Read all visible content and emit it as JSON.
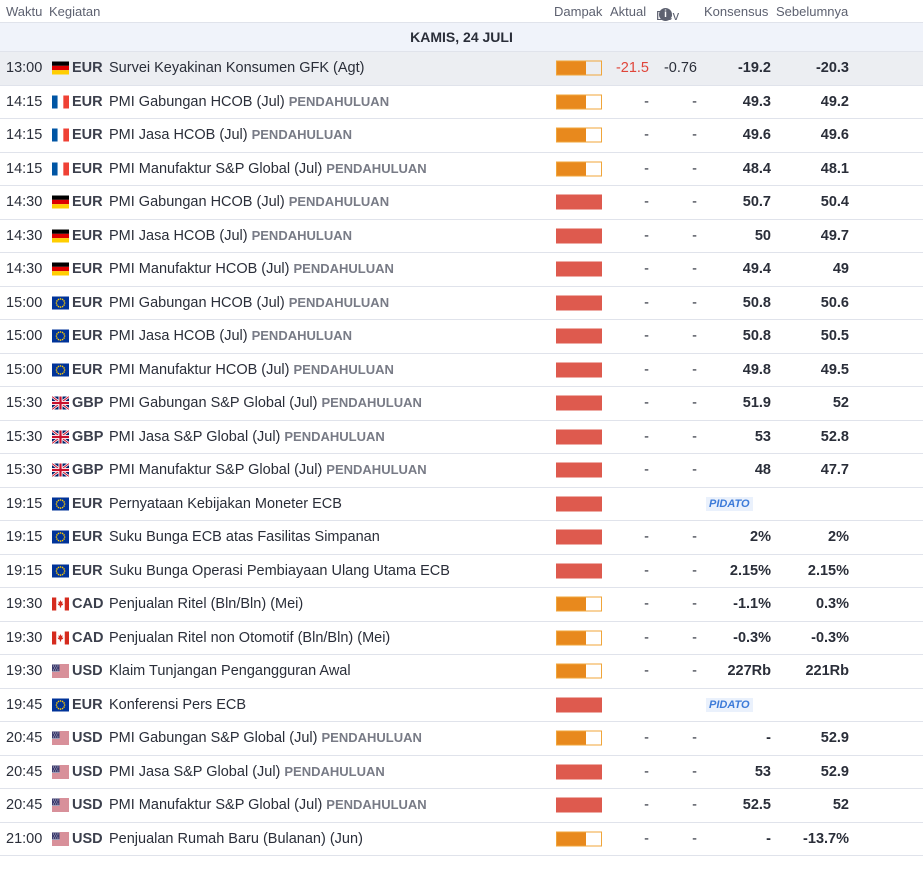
{
  "header": {
    "time": "Waktu",
    "event": "Kegiatan",
    "impact": "Dampak",
    "actual": "Aktual",
    "dev": "Dev",
    "consensus": "Konsensus",
    "previous": "Sebelumnya"
  },
  "day_label": "KAMIS, 24 JULI",
  "colors": {
    "impact_medium": "#e8891d",
    "impact_high": "#de5a4e",
    "negative": "#e0453a",
    "speech": "#3d7bd9"
  },
  "rows": [
    {
      "time": "13:00",
      "flag": "de",
      "currency": "EUR",
      "event": "Survei Keyakinan Konsumen GFK (Agt)",
      "prelim": "",
      "impact": "medium",
      "impact_level": 0.66,
      "actual": "-21.5",
      "dev": "-0.76",
      "consensus": "-19.2",
      "previous": "-20.3",
      "highlight": true,
      "actual_neg": true,
      "speech": ""
    },
    {
      "time": "14:15",
      "flag": "fr",
      "currency": "EUR",
      "event": "PMI Gabungan HCOB (Jul)",
      "prelim": "PENDAHULUAN",
      "impact": "medium",
      "impact_level": 0.66,
      "actual": "-",
      "dev": "-",
      "consensus": "49.3",
      "previous": "49.2"
    },
    {
      "time": "14:15",
      "flag": "fr",
      "currency": "EUR",
      "event": "PMI Jasa HCOB (Jul)",
      "prelim": "PENDAHULUAN",
      "impact": "medium",
      "impact_level": 0.66,
      "actual": "-",
      "dev": "-",
      "consensus": "49.6",
      "previous": "49.6"
    },
    {
      "time": "14:15",
      "flag": "fr",
      "currency": "EUR",
      "event": "PMI Manufaktur S&P Global (Jul)",
      "prelim": "PENDAHULUAN",
      "impact": "medium",
      "impact_level": 0.66,
      "actual": "-",
      "dev": "-",
      "consensus": "48.4",
      "previous": "48.1"
    },
    {
      "time": "14:30",
      "flag": "de",
      "currency": "EUR",
      "event": "PMI Gabungan HCOB (Jul)",
      "prelim": "PENDAHULUAN",
      "impact": "high",
      "impact_level": 1,
      "actual": "-",
      "dev": "-",
      "consensus": "50.7",
      "previous": "50.4"
    },
    {
      "time": "14:30",
      "flag": "de",
      "currency": "EUR",
      "event": "PMI Jasa HCOB (Jul)",
      "prelim": "PENDAHULUAN",
      "impact": "high",
      "impact_level": 1,
      "actual": "-",
      "dev": "-",
      "consensus": "50",
      "previous": "49.7"
    },
    {
      "time": "14:30",
      "flag": "de",
      "currency": "EUR",
      "event": "PMI Manufaktur HCOB (Jul)",
      "prelim": "PENDAHULUAN",
      "impact": "high",
      "impact_level": 1,
      "actual": "-",
      "dev": "-",
      "consensus": "49.4",
      "previous": "49"
    },
    {
      "time": "15:00",
      "flag": "eu",
      "currency": "EUR",
      "event": "PMI Gabungan HCOB (Jul)",
      "prelim": "PENDAHULUAN",
      "impact": "high",
      "impact_level": 1,
      "actual": "-",
      "dev": "-",
      "consensus": "50.8",
      "previous": "50.6"
    },
    {
      "time": "15:00",
      "flag": "eu",
      "currency": "EUR",
      "event": "PMI Jasa HCOB (Jul)",
      "prelim": "PENDAHULUAN",
      "impact": "high",
      "impact_level": 1,
      "actual": "-",
      "dev": "-",
      "consensus": "50.8",
      "previous": "50.5"
    },
    {
      "time": "15:00",
      "flag": "eu",
      "currency": "EUR",
      "event": "PMI Manufaktur HCOB (Jul)",
      "prelim": "PENDAHULUAN",
      "impact": "high",
      "impact_level": 1,
      "actual": "-",
      "dev": "-",
      "consensus": "49.8",
      "previous": "49.5"
    },
    {
      "time": "15:30",
      "flag": "gb",
      "currency": "GBP",
      "event": "PMI Gabungan S&P Global (Jul)",
      "prelim": "PENDAHULUAN",
      "impact": "high",
      "impact_level": 1,
      "actual": "-",
      "dev": "-",
      "consensus": "51.9",
      "previous": "52"
    },
    {
      "time": "15:30",
      "flag": "gb",
      "currency": "GBP",
      "event": "PMI Jasa S&P Global (Jul)",
      "prelim": "PENDAHULUAN",
      "impact": "high",
      "impact_level": 1,
      "actual": "-",
      "dev": "-",
      "consensus": "53",
      "previous": "52.8"
    },
    {
      "time": "15:30",
      "flag": "gb",
      "currency": "GBP",
      "event": "PMI Manufaktur S&P Global (Jul)",
      "prelim": "PENDAHULUAN",
      "impact": "high",
      "impact_level": 1,
      "actual": "-",
      "dev": "-",
      "consensus": "48",
      "previous": "47.7"
    },
    {
      "time": "19:15",
      "flag": "eu",
      "currency": "EUR",
      "event": "Pernyataan Kebijakan Moneter ECB",
      "prelim": "",
      "impact": "high",
      "impact_level": 1,
      "actual": "",
      "dev": "",
      "consensus": "",
      "previous": "",
      "speech": "PIDATO"
    },
    {
      "time": "19:15",
      "flag": "eu",
      "currency": "EUR",
      "event": "Suku Bunga ECB atas Fasilitas Simpanan",
      "prelim": "",
      "impact": "high",
      "impact_level": 1,
      "actual": "-",
      "dev": "-",
      "consensus": "2%",
      "previous": "2%"
    },
    {
      "time": "19:15",
      "flag": "eu",
      "currency": "EUR",
      "event": "Suku Bunga Operasi Pembiayaan Ulang Utama ECB",
      "prelim": "",
      "impact": "high",
      "impact_level": 1,
      "actual": "-",
      "dev": "-",
      "consensus": "2.15%",
      "previous": "2.15%"
    },
    {
      "time": "19:30",
      "flag": "ca",
      "currency": "CAD",
      "event": "Penjualan Ritel (Bln/Bln) (Mei)",
      "prelim": "",
      "impact": "medium",
      "impact_level": 0.66,
      "actual": "-",
      "dev": "-",
      "consensus": "-1.1%",
      "previous": "0.3%"
    },
    {
      "time": "19:30",
      "flag": "ca",
      "currency": "CAD",
      "event": "Penjualan Ritel non Otomotif (Bln/Bln) (Mei)",
      "prelim": "",
      "impact": "medium",
      "impact_level": 0.66,
      "actual": "-",
      "dev": "-",
      "consensus": "-0.3%",
      "previous": "-0.3%"
    },
    {
      "time": "19:30",
      "flag": "us",
      "currency": "USD",
      "event": "Klaim Tunjangan Pengangguran Awal",
      "prelim": "",
      "impact": "medium",
      "impact_level": 0.66,
      "actual": "-",
      "dev": "-",
      "consensus": "227Rb",
      "previous": "221Rb"
    },
    {
      "time": "19:45",
      "flag": "eu",
      "currency": "EUR",
      "event": "Konferensi Pers ECB",
      "prelim": "",
      "impact": "high",
      "impact_level": 1,
      "actual": "",
      "dev": "",
      "consensus": "",
      "previous": "",
      "speech": "PIDATO"
    },
    {
      "time": "20:45",
      "flag": "us",
      "currency": "USD",
      "event": "PMI Gabungan S&P Global (Jul)",
      "prelim": "PENDAHULUAN",
      "impact": "medium",
      "impact_level": 0.66,
      "actual": "-",
      "dev": "-",
      "consensus": "-",
      "previous": "52.9"
    },
    {
      "time": "20:45",
      "flag": "us",
      "currency": "USD",
      "event": "PMI Jasa S&P Global (Jul)",
      "prelim": "PENDAHULUAN",
      "impact": "high",
      "impact_level": 1,
      "actual": "-",
      "dev": "-",
      "consensus": "53",
      "previous": "52.9"
    },
    {
      "time": "20:45",
      "flag": "us",
      "currency": "USD",
      "event": "PMI Manufaktur S&P Global (Jul)",
      "prelim": "PENDAHULUAN",
      "impact": "high",
      "impact_level": 1,
      "actual": "-",
      "dev": "-",
      "consensus": "52.5",
      "previous": "52"
    },
    {
      "time": "21:00",
      "flag": "us",
      "currency": "USD",
      "event": "Penjualan Rumah Baru (Bulanan) (Jun)",
      "prelim": "",
      "impact": "medium",
      "impact_level": 0.66,
      "actual": "-",
      "dev": "-",
      "consensus": "-",
      "previous": "-13.7%"
    }
  ]
}
